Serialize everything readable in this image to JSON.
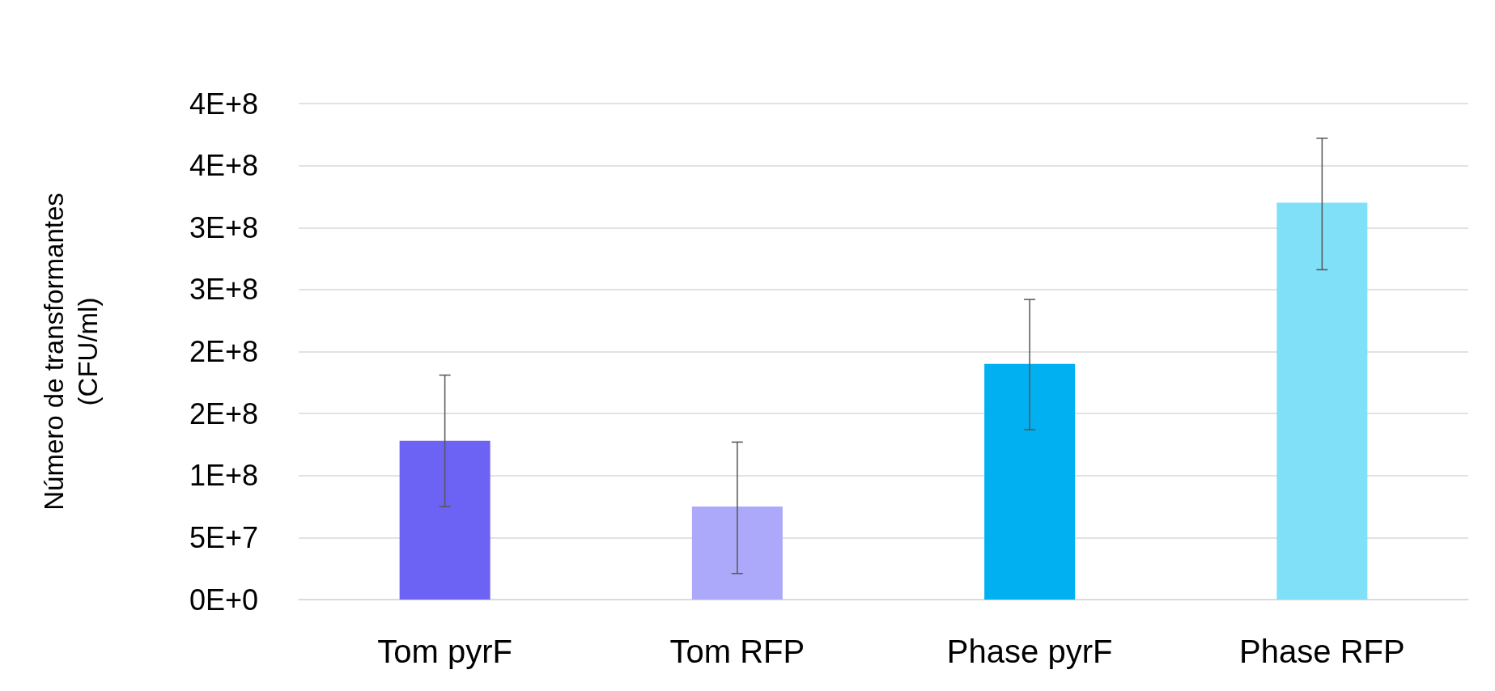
{
  "chart_data": {
    "type": "bar",
    "ylabel": "Número de transformantes\n(CFU/ml)",
    "categories": [
      "Tom pyrF",
      "Tom RFP",
      "Phase pyrF",
      "Phase RFP"
    ],
    "values": [
      128000000,
      75000000,
      190000000,
      320000000
    ],
    "colors": [
      "#6c63f5",
      "#ada9fa",
      "#00b0f0",
      "#7fe0f8"
    ],
    "errors": [
      [
        75000000,
        181000000
      ],
      [
        21000000,
        127000000
      ],
      [
        137000000,
        242000000
      ],
      [
        266000000,
        372000000
      ]
    ],
    "ylim": [
      0,
      400000000
    ],
    "yticks": [
      {
        "value": 0,
        "label": "0E+0"
      },
      {
        "value": 50000000,
        "label": "5E+7"
      },
      {
        "value": 100000000,
        "label": "1E+8"
      },
      {
        "value": 150000000,
        "label": "2E+8"
      },
      {
        "value": 200000000,
        "label": "2E+8"
      },
      {
        "value": 250000000,
        "label": "3E+8"
      },
      {
        "value": 300000000,
        "label": "3E+8"
      },
      {
        "value": 350000000,
        "label": "4E+8"
      },
      {
        "value": 400000000,
        "label": "4E+8"
      }
    ],
    "grid": "y"
  }
}
